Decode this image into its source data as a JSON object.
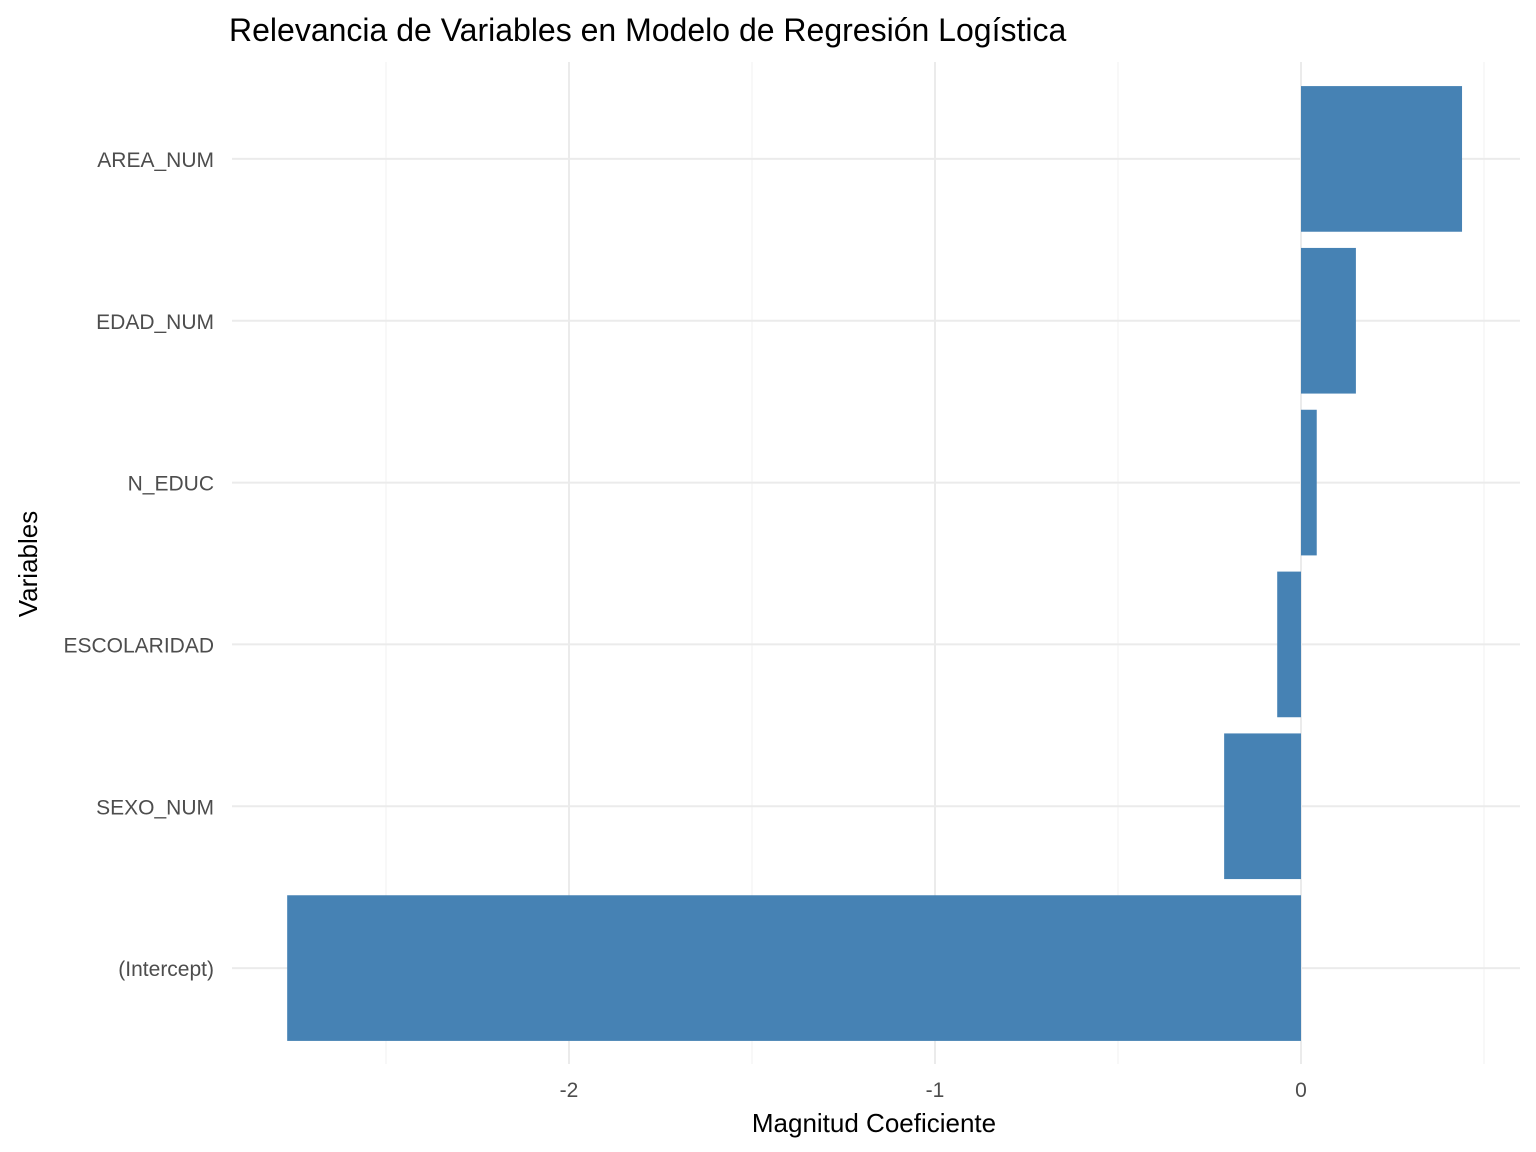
{
  "chart_data": {
    "type": "bar",
    "orientation": "horizontal",
    "title": "Relevancia de Variables en Modelo de Regresión Logística",
    "xlabel": "Magnitud Coeficiente",
    "ylabel": "Variables",
    "categories": [
      "(Intercept)",
      "SEXO_NUM",
      "ESCOLARIDAD",
      "N_EDUC",
      "EDAD_NUM",
      "AREA_NUM"
    ],
    "values": [
      -2.77,
      -0.21,
      -0.065,
      0.043,
      0.15,
      0.44
    ],
    "xlim": [
      -2.8,
      0.6
    ],
    "xticks": [
      -2,
      -1,
      0
    ],
    "xtick_labels": [
      "-2",
      "-1",
      "0"
    ],
    "grid": true,
    "bar_color": "#4682B4",
    "legend": "none"
  }
}
